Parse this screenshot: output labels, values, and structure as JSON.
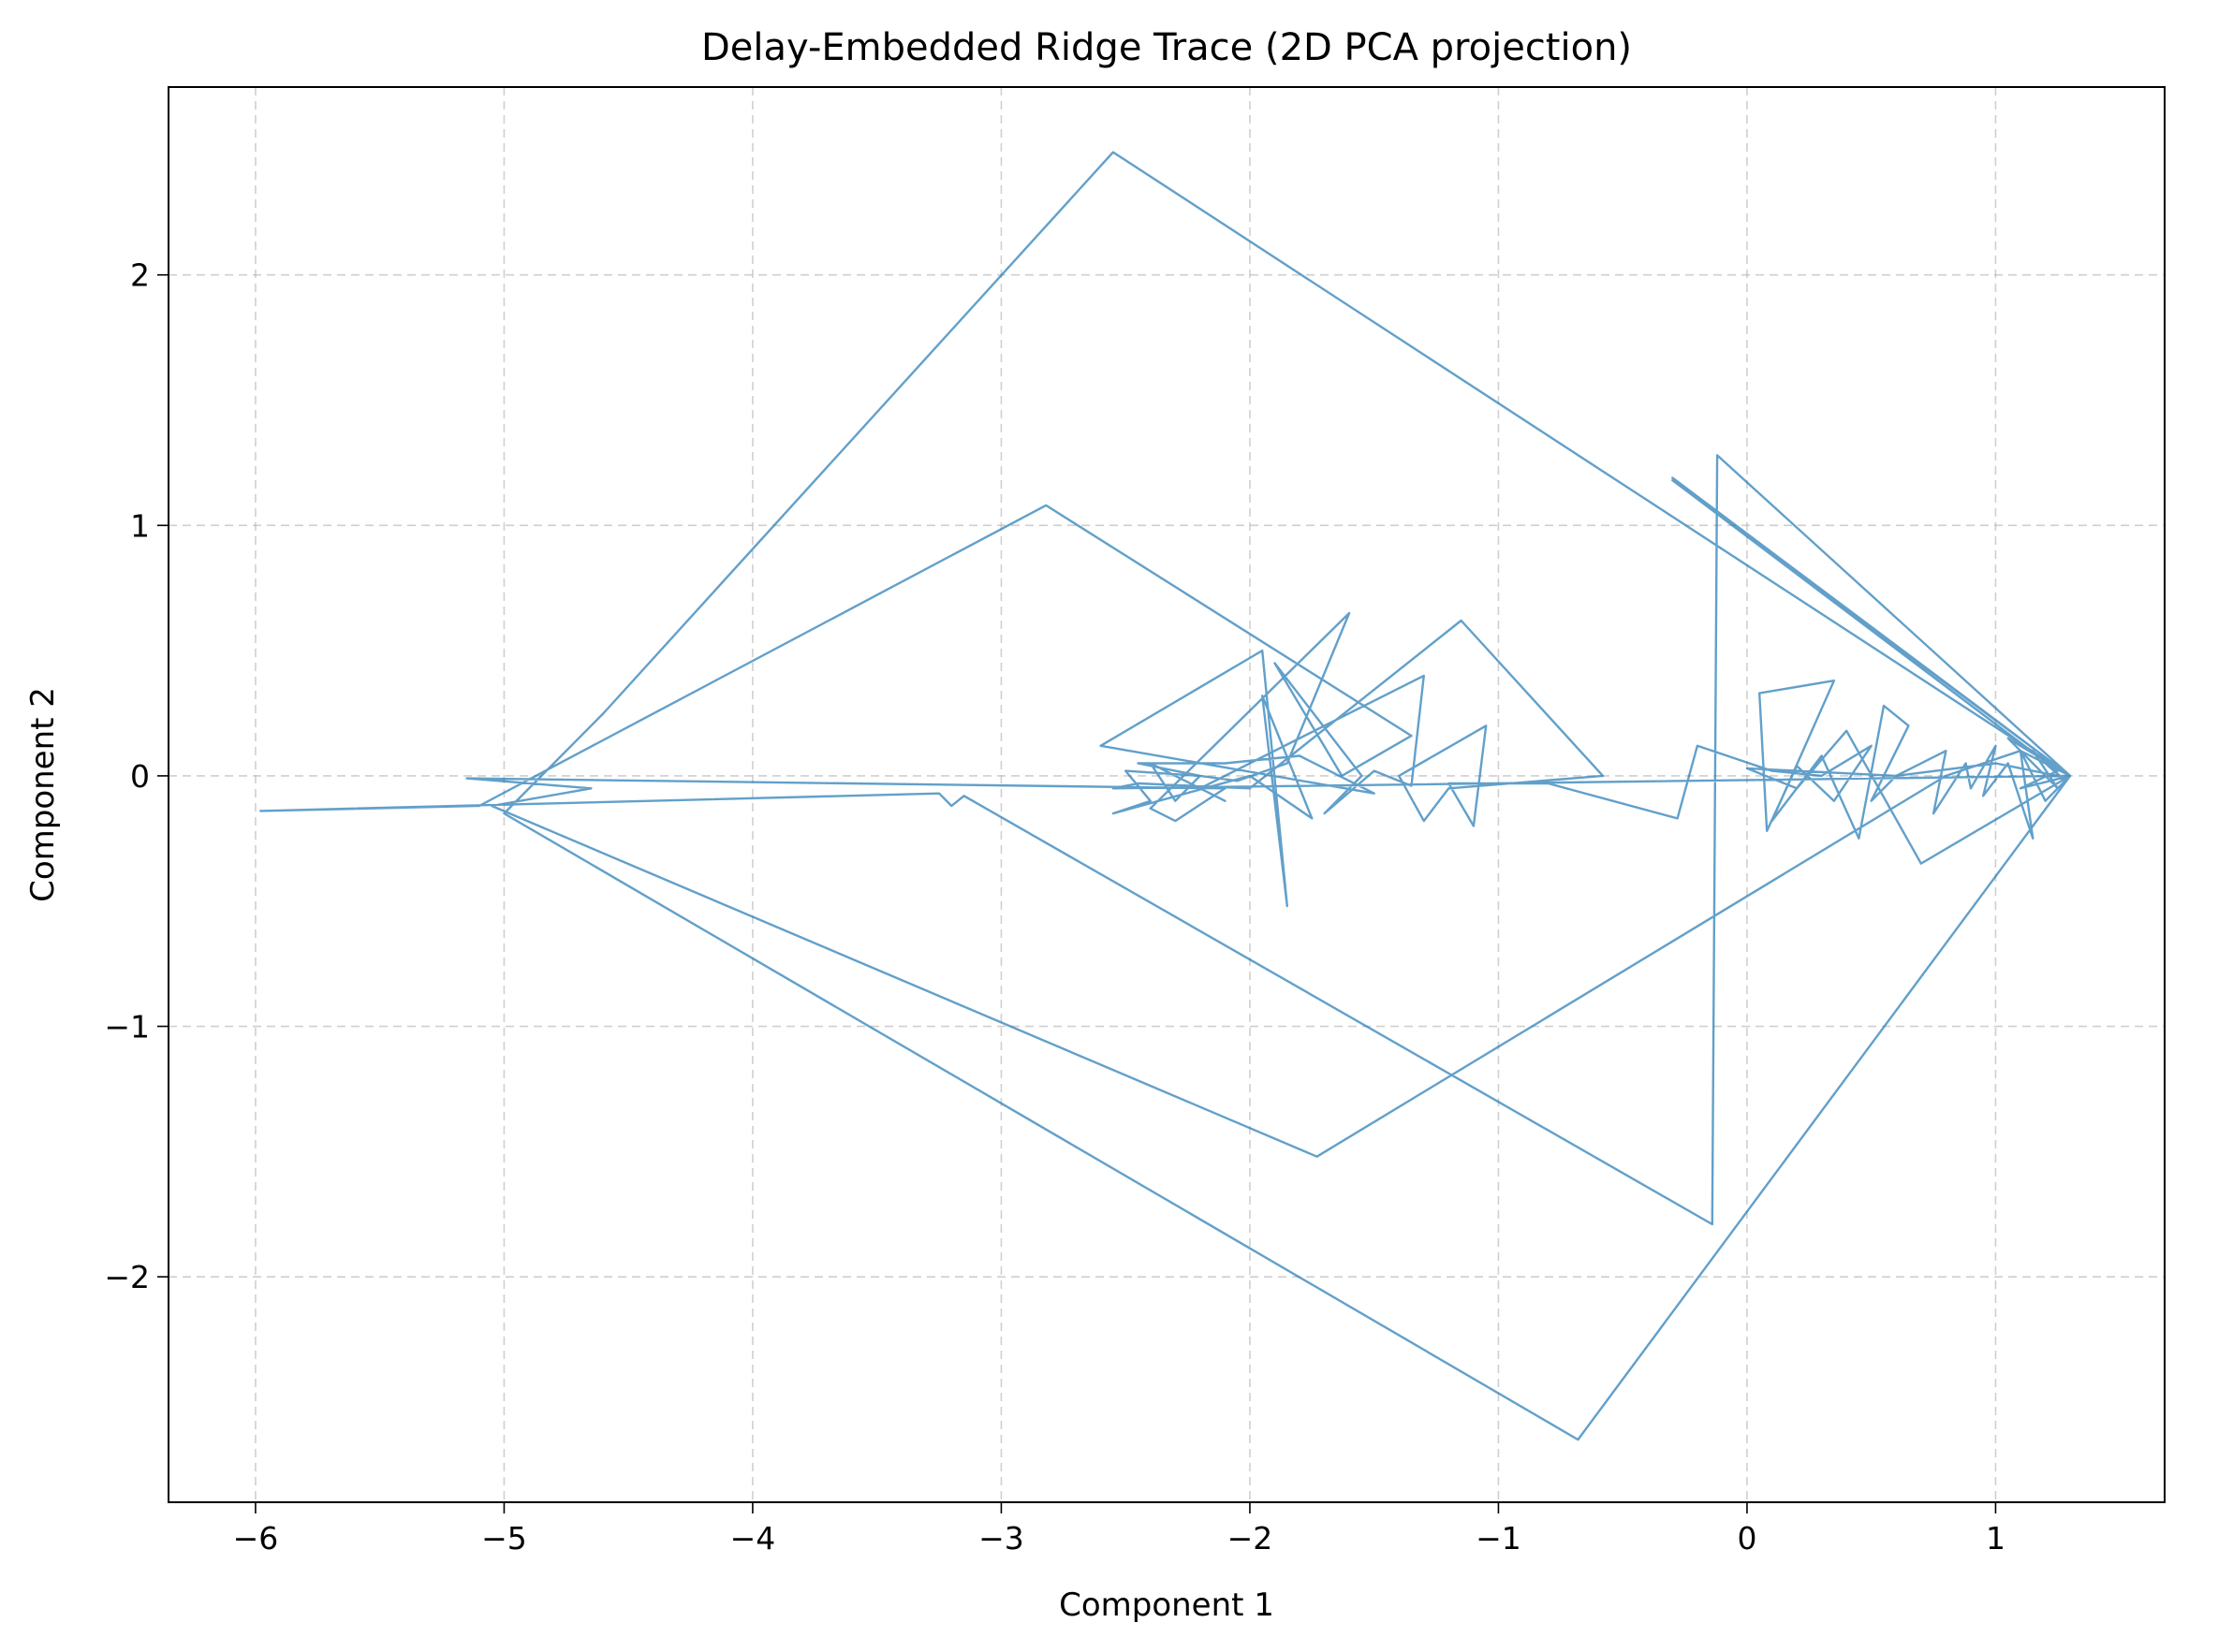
{
  "chart_data": {
    "type": "line",
    "title": "Delay-Embedded Ridge Trace (2D PCA projection)",
    "xlabel": "Component 1",
    "ylabel": "Component 2",
    "xlim": [
      -6.35,
      1.68
    ],
    "ylim": [
      -2.9,
      2.75
    ],
    "xticks": [
      -6,
      -5,
      -4,
      -3,
      -2,
      -1,
      0,
      1
    ],
    "yticks": [
      -2,
      -1,
      0,
      1,
      2
    ],
    "xtick_labels": [
      "−6",
      "−5",
      "−4",
      "−3",
      "−2",
      "−1",
      "0",
      "1"
    ],
    "ytick_labels": [
      "−2",
      "−1",
      "0",
      "1",
      "2"
    ],
    "grid": true,
    "color": "#1f77b4",
    "series": [
      {
        "points": [
          [
            1.3,
            0.0
          ],
          [
            1.2,
            0.05
          ],
          [
            1.28,
            -0.02
          ],
          [
            1.15,
            0.1
          ],
          [
            1.25,
            -0.05
          ],
          [
            1.05,
            0.15
          ],
          [
            1.3,
            0.0
          ],
          [
            -2.55,
            2.49
          ],
          [
            -4.6,
            0.25
          ],
          [
            -5.0,
            -0.15
          ],
          [
            -0.68,
            -2.65
          ],
          [
            1.15,
            -0.2
          ],
          [
            1.3,
            0.0
          ],
          [
            -0.3,
            1.18
          ],
          [
            1.25,
            0.02
          ],
          [
            1.1,
            -0.05
          ],
          [
            1.3,
            0.0
          ],
          [
            -0.12,
            1.28
          ],
          [
            -0.14,
            -1.79
          ],
          [
            -3.15,
            -0.08
          ],
          [
            -3.2,
            -0.12
          ],
          [
            -3.25,
            -0.07
          ],
          [
            -5.98,
            -0.14
          ],
          [
            -5.1,
            -0.12
          ],
          [
            -2.82,
            1.08
          ],
          [
            -1.35,
            0.16
          ],
          [
            -1.63,
            0.0
          ],
          [
            -1.9,
            0.45
          ],
          [
            -1.55,
            0.0
          ],
          [
            -1.7,
            -0.15
          ],
          [
            -1.5,
            0.02
          ],
          [
            -1.35,
            -0.04
          ],
          [
            -1.3,
            0.4
          ],
          [
            -2.2,
            -0.05
          ],
          [
            -2.1,
            -0.1
          ],
          [
            -2.4,
            0.05
          ],
          [
            -2.3,
            -0.1
          ],
          [
            -2.2,
            0.0
          ],
          [
            -2.45,
            0.05
          ],
          [
            -2.1,
            0.05
          ],
          [
            -1.8,
            0.08
          ],
          [
            -1.5,
            -0.07
          ],
          [
            -2.6,
            0.12
          ],
          [
            -1.95,
            0.5
          ],
          [
            -1.85,
            -0.52
          ],
          [
            -1.95,
            0.32
          ],
          [
            -1.75,
            -0.17
          ],
          [
            -2.0,
            0.0
          ],
          [
            -2.55,
            -0.15
          ],
          [
            -2.4,
            -0.1
          ],
          [
            -2.5,
            0.02
          ],
          [
            -2.2,
            0.0
          ],
          [
            -2.05,
            -0.02
          ],
          [
            -1.85,
            0.05
          ],
          [
            -1.6,
            0.65
          ],
          [
            -2.4,
            -0.13
          ],
          [
            -2.3,
            -0.18
          ],
          [
            -2.1,
            -0.05
          ],
          [
            -5.15,
            -0.01
          ],
          [
            -4.65,
            -0.05
          ],
          [
            -5.05,
            -0.12
          ],
          [
            -1.73,
            -1.52
          ],
          [
            0.8,
            0.0
          ],
          [
            1.1,
            0.1
          ],
          [
            1.3,
            0.0
          ],
          [
            -0.3,
            1.19
          ],
          [
            1.3,
            0.0
          ],
          [
            -2.55,
            -0.05
          ],
          [
            -2.45,
            -0.03
          ],
          [
            -2.0,
            -0.05
          ],
          [
            -1.15,
            0.62
          ],
          [
            -0.58,
            0.0
          ],
          [
            -1.2,
            -0.05
          ],
          [
            -1.3,
            -0.18
          ],
          [
            -1.4,
            0.0
          ],
          [
            -1.05,
            0.2
          ],
          [
            -1.1,
            -0.2
          ],
          [
            -1.2,
            -0.03
          ],
          [
            -0.8,
            -0.03
          ],
          [
            -0.28,
            -0.17
          ],
          [
            -0.2,
            0.12
          ],
          [
            0.1,
            0.02
          ],
          [
            0.3,
            0.0
          ],
          [
            0.5,
            0.12
          ],
          [
            0.35,
            -0.1
          ],
          [
            0.2,
            0.04
          ],
          [
            0.08,
            -0.22
          ],
          [
            0.05,
            0.33
          ],
          [
            0.35,
            0.38
          ],
          [
            0.1,
            -0.18
          ],
          [
            0.3,
            0.08
          ],
          [
            0.45,
            -0.25
          ],
          [
            0.55,
            0.28
          ],
          [
            0.65,
            0.2
          ],
          [
            0.5,
            -0.1
          ],
          [
            0.6,
            0.0
          ],
          [
            0.8,
            0.1
          ],
          [
            0.75,
            -0.15
          ],
          [
            0.88,
            0.05
          ],
          [
            0.9,
            -0.05
          ],
          [
            1.0,
            0.12
          ],
          [
            0.95,
            -0.08
          ],
          [
            1.05,
            0.05
          ],
          [
            1.15,
            -0.25
          ],
          [
            1.1,
            0.1
          ],
          [
            1.2,
            -0.1
          ],
          [
            1.3,
            0.0
          ],
          [
            0.7,
            -0.35
          ],
          [
            0.4,
            0.18
          ],
          [
            0.2,
            -0.05
          ],
          [
            0.0,
            0.03
          ],
          [
            0.6,
            0.0
          ],
          [
            1.0,
            0.05
          ],
          [
            1.25,
            0.0
          ],
          [
            1.3,
            0.0
          ]
        ]
      }
    ]
  }
}
